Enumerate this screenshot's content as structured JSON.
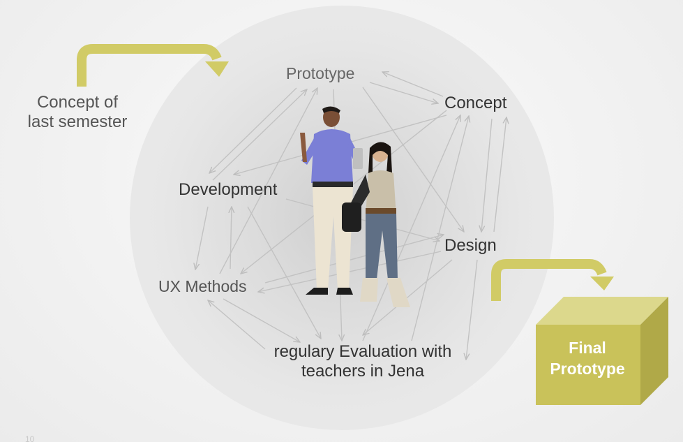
{
  "nodes": {
    "prototype": "Prototype",
    "concept": "Concept",
    "development": "Development",
    "design": "Design",
    "ux_methods": "UX Methods",
    "evaluation_line1": "regulary Evaluation with",
    "evaluation_line2": "teachers in Jena"
  },
  "input": {
    "line1": "Concept of",
    "line2": "last semester"
  },
  "output": {
    "line1": "Final",
    "line2": "Prototype"
  },
  "page_number": "10",
  "colors": {
    "accent": "#d1cb66",
    "box_front": "#c9c25a",
    "box_top": "#dcd88c",
    "box_side": "#b0a948",
    "edge": "#bdbdbd"
  }
}
